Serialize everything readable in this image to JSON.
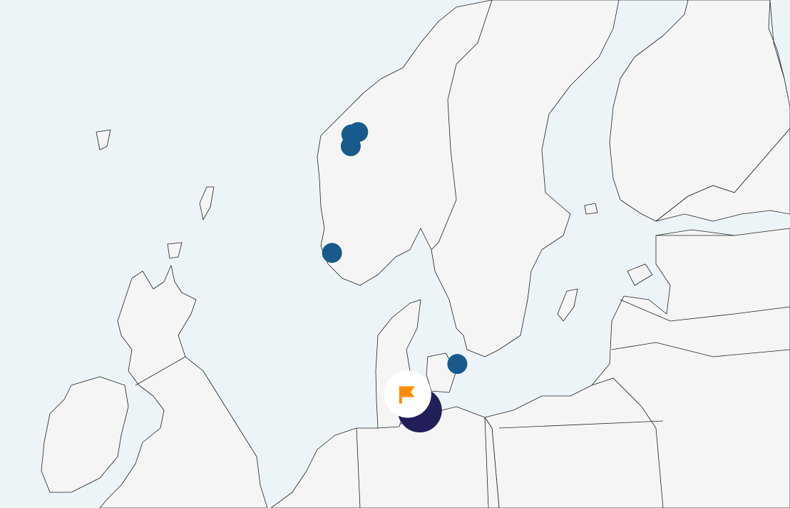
{
  "map": {
    "colors": {
      "sea": "#edf4f7",
      "land": "#f5f5f5",
      "coast": "#222222",
      "marker": "#175a8b",
      "cluster": "#221e5a",
      "flag": "#ff8c00",
      "flag_bg": "#ffffff"
    },
    "markers": [
      {
        "type": "point",
        "lat": 61.12,
        "lon": 5.1
      },
      {
        "type": "point",
        "lat": 61.18,
        "lon": 5.6
      },
      {
        "type": "point",
        "lat": 60.82,
        "lon": 5.05
      },
      {
        "type": "point",
        "lat": 58.1,
        "lon": 3.65
      },
      {
        "type": "point",
        "lat": 55.27,
        "lon": 13.0
      }
    ],
    "cluster": {
      "lat": 54.09,
      "lon": 10.2
    },
    "flag": {
      "lat": 54.5,
      "lon": 9.3,
      "icon": "flag-icon"
    }
  }
}
